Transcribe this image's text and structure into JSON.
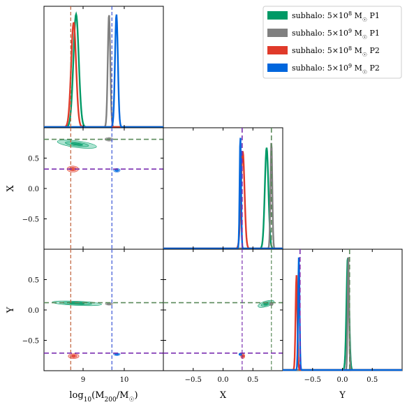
{
  "chart_data": {
    "type": "corner",
    "params": [
      {
        "key": "logm",
        "label": "log10(M200/M☉)",
        "label_main": "log",
        "label_sub": "10",
        "label_rest": "(M",
        "label_sub2": "200",
        "label_tail": "/M",
        "label_sun": "☉",
        "label_close": ")",
        "range": [
          8.05,
          10.95
        ],
        "ticks": [
          9,
          10
        ],
        "tick_labels": [
          "9",
          "10"
        ]
      },
      {
        "key": "x",
        "label": "X",
        "range": [
          -1.0,
          1.0
        ],
        "ticks": [
          -0.5,
          0.0,
          0.5
        ],
        "tick_labels": [
          "−0.5",
          "0.0",
          "0.5"
        ]
      },
      {
        "key": "y",
        "label": "Y",
        "range": [
          -1.0,
          1.0
        ],
        "ticks": [
          -0.5,
          0.0,
          0.5
        ],
        "tick_labels": [
          "−0.5",
          "0.0",
          "0.5"
        ]
      }
    ],
    "truths": [
      {
        "logm": 8.7,
        "x": 0.81,
        "y": 0.12,
        "color": "#5b8a5b"
      },
      {
        "logm": 9.7,
        "x": 0.32,
        "y": -0.71,
        "color": "#7a2fb0"
      }
    ],
    "truth_vline_colors": {
      "logm_1": "#c0603a",
      "logm_2": "#3a55d6"
    },
    "series": [
      {
        "name": "subhalo: 5×10⁸ M☉ P1",
        "legend_main": "subhalo: 5",
        "legend_exp": "8",
        "legend_pre_exp": "×10",
        "legend_tail": " M",
        "legend_sun": "☉",
        "legend_suffix": " P1",
        "color": "#009966",
        "fill": "#66ccaa",
        "logm": {
          "mean": 8.83,
          "sd": 0.065
        },
        "x": {
          "mean": 0.73,
          "sd": 0.03
        },
        "y": {
          "mean": 0.09,
          "sd": 0.022
        },
        "peak_rel": 0.95,
        "x_peak_rel": 0.85,
        "y_peak_rel": 0.95,
        "mx_contour": {
          "cx": 8.85,
          "cy": 0.73,
          "rx": 0.48,
          "ry": 0.055,
          "tilt": -0.09
        },
        "my_contour": {
          "cx": 8.85,
          "cy": 0.11,
          "rx": 0.6,
          "ry": 0.035,
          "tilt": -0.03
        },
        "xy_contour": {
          "cx": 0.72,
          "cy": 0.1,
          "rx": 0.14,
          "ry": 0.045,
          "tilt": 0.3
        }
      },
      {
        "name": "subhalo: 5×10⁹ M☉ P1",
        "legend_main": "subhalo: 5",
        "legend_exp": "9",
        "legend_pre_exp": "×10",
        "legend_tail": " M",
        "legend_sun": "☉",
        "legend_suffix": " P1",
        "color": "#808080",
        "fill": "#a8a8a8",
        "logm": {
          "mean": 9.63,
          "sd": 0.03
        },
        "x": {
          "mean": 0.81,
          "sd": 0.015
        },
        "y": {
          "mean": 0.1,
          "sd": 0.012
        },
        "peak_rel": 0.95,
        "x_peak_rel": 0.9,
        "y_peak_rel": 0.95,
        "mx_contour": {
          "cx": 9.63,
          "cy": 0.81,
          "rx": 0.1,
          "ry": 0.03,
          "tilt": 0
        },
        "my_contour": {
          "cx": 9.63,
          "cy": 0.1,
          "rx": 0.09,
          "ry": 0.02,
          "tilt": 0
        },
        "xy_contour": {
          "cx": 0.81,
          "cy": 0.1,
          "rx": 0.03,
          "ry": 0.03,
          "tilt": 0
        }
      },
      {
        "name": "subhalo: 5×10⁸ M☉ P2",
        "legend_main": "subhalo: 5",
        "legend_exp": "8",
        "legend_pre_exp": "×10",
        "legend_tail": " M",
        "legend_sun": "☉",
        "legend_suffix": " P2",
        "color": "#e03a2a",
        "fill": "#f08a80",
        "logm": {
          "mean": 8.77,
          "sd": 0.06
        },
        "x": {
          "mean": 0.33,
          "sd": 0.03
        },
        "y": {
          "mean": -0.77,
          "sd": 0.015
        },
        "peak_rel": 0.88,
        "x_peak_rel": 0.82,
        "y_peak_rel": 0.8,
        "mx_contour": {
          "cx": 8.75,
          "cy": 0.32,
          "rx": 0.14,
          "ry": 0.05,
          "tilt": 0
        },
        "my_contour": {
          "cx": 8.77,
          "cy": -0.76,
          "rx": 0.13,
          "ry": 0.04,
          "tilt": 0
        },
        "xy_contour": {
          "cx": 0.33,
          "cy": -0.76,
          "rx": 0.035,
          "ry": 0.04,
          "tilt": 0
        }
      },
      {
        "name": "subhalo: 5×10⁹ M☉ P2",
        "legend_main": "subhalo: 5",
        "legend_exp": "9",
        "legend_pre_exp": "×10",
        "legend_tail": " M",
        "legend_sun": "☉",
        "legend_suffix": " P2",
        "color": "#0066dd",
        "fill": "#6aa8f0",
        "logm": {
          "mean": 9.81,
          "sd": 0.035
        },
        "x": {
          "mean": 0.29,
          "sd": 0.012
        },
        "y": {
          "mean": -0.73,
          "sd": 0.012
        },
        "peak_rel": 0.95,
        "x_peak_rel": 0.95,
        "y_peak_rel": 0.95,
        "mx_contour": {
          "cx": 9.82,
          "cy": 0.3,
          "rx": 0.08,
          "ry": 0.03,
          "tilt": 0
        },
        "my_contour": {
          "cx": 9.82,
          "cy": -0.73,
          "rx": 0.08,
          "ry": 0.02,
          "tilt": 0
        },
        "xy_contour": {
          "cx": 0.29,
          "cy": -0.73,
          "rx": 0.025,
          "ry": 0.02,
          "tilt": 0
        }
      }
    ],
    "legend_position": "top-right",
    "grid": false
  }
}
